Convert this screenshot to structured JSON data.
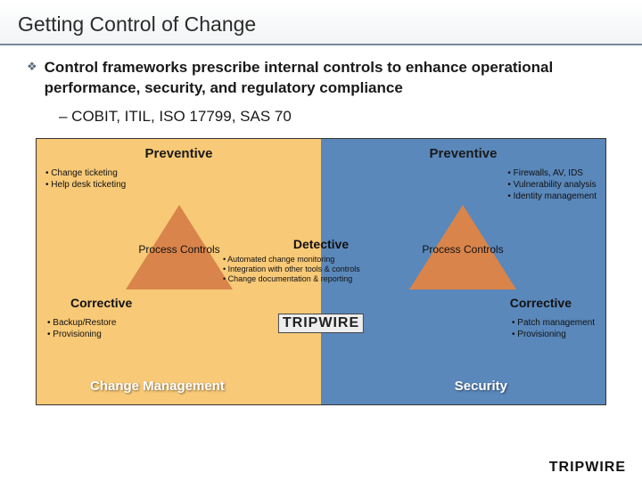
{
  "title": "Getting Control of Change",
  "main_bullet": "Control frameworks prescribe internal controls to enhance operational performance, security, and regulatory compliance",
  "sub_bullet": "–  COBIT, ITIL, ISO 17799, SAS 70",
  "diagram": {
    "left": {
      "bg_color": "#f8c977",
      "preventive_title": "Preventive",
      "preventive_bullets": [
        "• Change ticketing",
        "• Help desk ticketing"
      ],
      "triangle_color": "#d9844a",
      "triangle_label": "Process Controls",
      "corrective_title": "Corrective",
      "corrective_bullets": [
        "• Backup/Restore",
        "• Provisioning"
      ],
      "category": "Change Management"
    },
    "right": {
      "bg_color": "#5a88bb",
      "preventive_title": "Preventive",
      "preventive_bullets": [
        "• Firewalls, AV, IDS",
        "• Vulnerability analysis",
        "• Identity management"
      ],
      "triangle_color": "#d9844a",
      "triangle_label": "Process Controls",
      "corrective_title": "Corrective",
      "corrective_bullets": [
        "• Patch management",
        "• Provisioning"
      ],
      "category": "Security"
    },
    "center": {
      "detective_title": "Detective",
      "detective_bullets": [
        "• Automated change monitoring",
        "• Integration with other tools & controls",
        "• Change documentation & reporting"
      ],
      "brand": "TRIPWIRE"
    }
  },
  "footer_brand": "TRIPWIRE",
  "colors": {
    "header_border": "#7a8aa0",
    "text_dark": "#1a1a1a"
  }
}
